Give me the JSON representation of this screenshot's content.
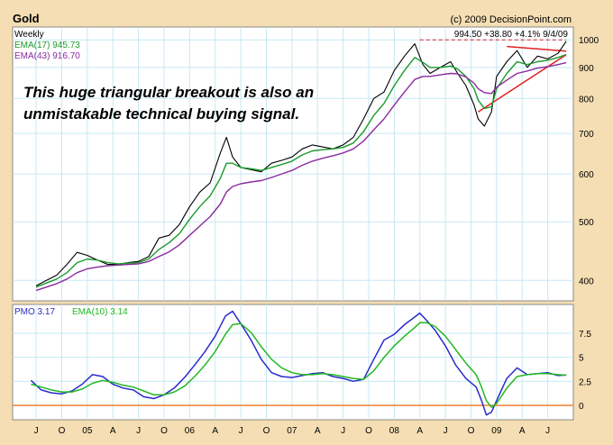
{
  "chart_data": [
    {
      "type": "line",
      "title": "Gold",
      "credit": "(c) 2009 DecisionPoint.com",
      "period_label": "Weekly",
      "last_bar_readout": "994.50  +38.80  +4.1%  9/4/09",
      "annotation_line1": "This huge triangular breakout is also an",
      "annotation_line2": "unmistakable technical buying signal.",
      "y_scale": "log",
      "ylim": [
        370,
        1050
      ],
      "y_ticks": [
        "400",
        "500",
        "600",
        "700",
        "800",
        "900",
        "1000"
      ],
      "y_tick_values": [
        400,
        500,
        600,
        700,
        800,
        900,
        1000
      ],
      "grid": true,
      "legend": "top-left",
      "x": [
        2004.5,
        2004.6,
        2004.7,
        2004.8,
        2004.9,
        2005.0,
        2005.1,
        2005.2,
        2005.3,
        2005.4,
        2005.5,
        2005.6,
        2005.7,
        2005.8,
        2005.9,
        2006.0,
        2006.1,
        2006.2,
        2006.3,
        2006.36,
        2006.42,
        2006.5,
        2006.6,
        2006.7,
        2006.8,
        2006.9,
        2007.0,
        2007.1,
        2007.2,
        2007.3,
        2007.4,
        2007.5,
        2007.6,
        2007.7,
        2007.8,
        2007.9,
        2008.0,
        2008.1,
        2008.2,
        2008.28,
        2008.35,
        2008.45,
        2008.55,
        2008.62,
        2008.7,
        2008.78,
        2008.82,
        2008.88,
        2008.95,
        2009.0,
        2009.1,
        2009.2,
        2009.3,
        2009.4,
        2009.5,
        2009.6,
        2009.68
      ],
      "series": [
        {
          "name": "",
          "values": [
            392,
            400,
            408,
            425,
            445,
            440,
            432,
            425,
            425,
            428,
            430,
            438,
            470,
            475,
            495,
            530,
            560,
            580,
            650,
            690,
            640,
            615,
            610,
            605,
            625,
            632,
            640,
            660,
            670,
            665,
            660,
            670,
            690,
            740,
            800,
            820,
            890,
            940,
            985,
            910,
            880,
            900,
            920,
            880,
            840,
            780,
            740,
            720,
            760,
            870,
            920,
            960,
            900,
            940,
            930,
            950,
            994.5
          ]
        },
        {
          "name": "EMA(17) 945.73",
          "values": [
            390,
            396,
            402,
            412,
            428,
            434,
            432,
            428,
            426,
            427,
            428,
            434,
            450,
            462,
            478,
            505,
            530,
            552,
            590,
            625,
            625,
            615,
            612,
            608,
            615,
            622,
            630,
            645,
            655,
            658,
            660,
            664,
            675,
            705,
            750,
            785,
            840,
            890,
            935,
            918,
            900,
            900,
            905,
            895,
            870,
            830,
            795,
            770,
            775,
            830,
            880,
            920,
            910,
            920,
            925,
            935,
            945.73
          ]
        },
        {
          "name": "EMA(43) 916.70",
          "values": [
            385,
            390,
            395,
            402,
            412,
            418,
            421,
            423,
            424,
            425,
            426,
            430,
            438,
            446,
            458,
            475,
            492,
            510,
            535,
            560,
            572,
            578,
            582,
            585,
            592,
            600,
            608,
            620,
            630,
            637,
            643,
            650,
            660,
            680,
            710,
            740,
            780,
            820,
            860,
            870,
            870,
            875,
            880,
            878,
            868,
            848,
            830,
            818,
            815,
            835,
            858,
            880,
            888,
            898,
            903,
            910,
            916.7
          ]
        }
      ],
      "trendlines": [
        {
          "from": [
            2009.1,
            975
          ],
          "to": [
            2009.68,
            958
          ]
        },
        {
          "from": [
            2008.82,
            760
          ],
          "to": [
            2009.68,
            945
          ]
        },
        {
          "from": [
            2008.25,
            1000
          ],
          "to": [
            2009.68,
            1000
          ]
        }
      ]
    },
    {
      "type": "line",
      "ylim": [
        -1.5,
        10.5
      ],
      "y_ticks": [
        "0",
        "2.5",
        "5",
        "7.5"
      ],
      "y_tick_values": [
        0,
        2.5,
        5,
        7.5
      ],
      "grid": true,
      "legend": "top-left",
      "x_ticks": [
        "J",
        "O",
        "05",
        "A",
        "J",
        "O",
        "06",
        "A",
        "J",
        "O",
        "07",
        "A",
        "J",
        "O",
        "08",
        "A",
        "J",
        "O",
        "09",
        "A",
        "J"
      ],
      "x_tick_values": [
        2004.5,
        2004.75,
        2005.0,
        2005.25,
        2005.5,
        2005.75,
        2006.0,
        2006.25,
        2006.5,
        2006.75,
        2007.0,
        2007.25,
        2007.5,
        2007.75,
        2008.0,
        2008.25,
        2008.5,
        2008.75,
        2009.0,
        2009.25,
        2009.5
      ],
      "reference_line": 0,
      "x": [
        2004.45,
        2004.55,
        2004.65,
        2004.75,
        2004.85,
        2004.95,
        2005.05,
        2005.15,
        2005.25,
        2005.35,
        2005.45,
        2005.55,
        2005.65,
        2005.75,
        2005.85,
        2005.95,
        2006.05,
        2006.15,
        2006.25,
        2006.35,
        2006.42,
        2006.5,
        2006.6,
        2006.7,
        2006.8,
        2006.9,
        2007.0,
        2007.1,
        2007.2,
        2007.3,
        2007.4,
        2007.5,
        2007.6,
        2007.7,
        2007.8,
        2007.9,
        2008.0,
        2008.1,
        2008.2,
        2008.25,
        2008.32,
        2008.4,
        2008.5,
        2008.6,
        2008.7,
        2008.8,
        2008.85,
        2008.9,
        2008.95,
        2009.0,
        2009.1,
        2009.2,
        2009.3,
        2009.4,
        2009.5,
        2009.6,
        2009.68
      ],
      "series": [
        {
          "name": "PMO 3.17",
          "values": [
            2.6,
            1.6,
            1.3,
            1.2,
            1.5,
            2.2,
            3.2,
            3.0,
            2.2,
            1.8,
            1.6,
            0.9,
            0.7,
            1.1,
            1.8,
            2.9,
            4.2,
            5.6,
            7.2,
            9.3,
            9.8,
            8.5,
            6.8,
            4.8,
            3.4,
            3.0,
            2.9,
            3.1,
            3.3,
            3.4,
            3.0,
            2.8,
            2.5,
            2.7,
            4.8,
            6.8,
            7.4,
            8.4,
            9.2,
            9.6,
            8.8,
            7.8,
            6.2,
            4.2,
            2.8,
            1.9,
            0.6,
            -1.0,
            -0.7,
            0.5,
            2.8,
            3.9,
            3.2,
            3.3,
            3.4,
            3.1,
            3.17
          ]
        },
        {
          "name": "EMA(10) 3.14",
          "values": [
            2.2,
            1.9,
            1.6,
            1.4,
            1.4,
            1.7,
            2.3,
            2.6,
            2.4,
            2.1,
            1.9,
            1.5,
            1.1,
            1.1,
            1.4,
            2.0,
            3.0,
            4.2,
            5.6,
            7.4,
            8.4,
            8.5,
            7.6,
            6.1,
            4.8,
            3.9,
            3.4,
            3.2,
            3.2,
            3.3,
            3.2,
            3.0,
            2.8,
            2.7,
            3.6,
            5.0,
            6.2,
            7.2,
            8.1,
            8.6,
            8.6,
            8.2,
            7.2,
            5.8,
            4.4,
            3.2,
            2.0,
            0.5,
            -0.2,
            0.2,
            1.8,
            3.0,
            3.2,
            3.3,
            3.3,
            3.2,
            3.14
          ]
        }
      ]
    }
  ],
  "colors": {
    "frame_bg": "#f5deb3",
    "plot_bg": "#ffffff",
    "grid": "#c8e8f4",
    "price": "#000000",
    "ema17": "#1a9a2a",
    "ema43": "#8a2aa0",
    "pmo": "#2a2acc",
    "pmo_ema": "#22b822",
    "trend": "#e02020",
    "zero": "#f08030"
  }
}
